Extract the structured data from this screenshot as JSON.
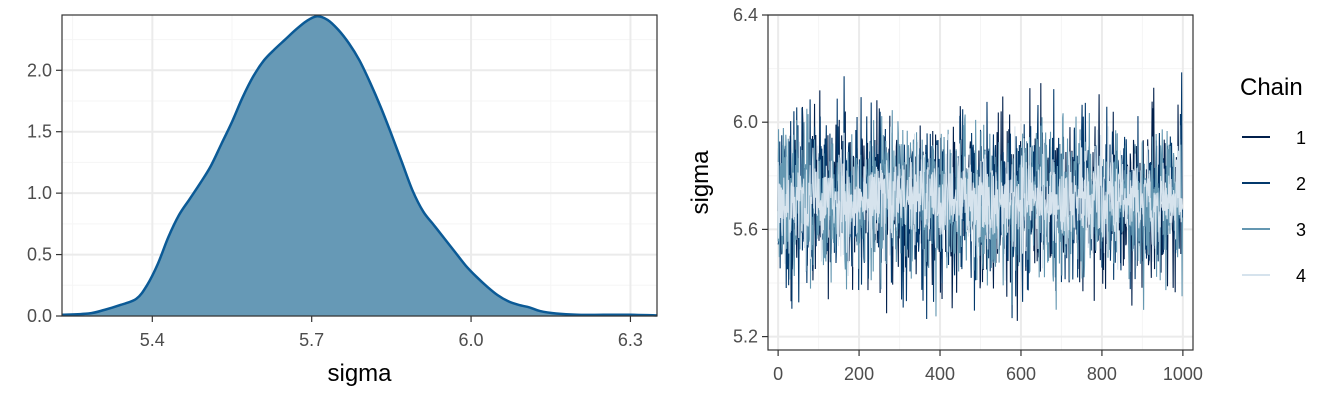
{
  "colors": {
    "density_fill": "#6699b6",
    "density_line": "#0b5a96",
    "grid_major": "#ebebeb",
    "grid_minor": "#f5f5f5",
    "panel_border": "#333333",
    "tick_text": "#4d4d4d"
  },
  "chart_data": [
    {
      "type": "area",
      "xlabel": "sigma",
      "ylabel": "",
      "xlim": [
        5.23,
        6.35
      ],
      "ylim": [
        0,
        2.45
      ],
      "x_ticks": [
        5.4,
        5.7,
        6.0,
        6.3
      ],
      "x_tick_labels": [
        "5.4",
        "5.7",
        "6.0",
        "6.3"
      ],
      "y_ticks": [
        0.0,
        0.5,
        1.0,
        1.5,
        2.0
      ],
      "y_tick_labels": [
        "0.0",
        "0.5",
        "1.0",
        "1.5",
        "2.0"
      ],
      "grid": true,
      "series": [
        {
          "x": [
            5.23,
            5.28,
            5.31,
            5.34,
            5.37,
            5.39,
            5.41,
            5.43,
            5.45,
            5.47,
            5.49,
            5.51,
            5.53,
            5.55,
            5.57,
            5.59,
            5.61,
            5.63,
            5.65,
            5.67,
            5.69,
            5.71,
            5.73,
            5.75,
            5.77,
            5.79,
            5.81,
            5.83,
            5.85,
            5.87,
            5.89,
            5.91,
            5.93,
            5.95,
            5.97,
            5.99,
            6.01,
            6.03,
            6.05,
            6.07,
            6.09,
            6.11,
            6.13,
            6.16,
            6.2,
            6.25,
            6.3,
            6.35
          ],
          "y": [
            0.01,
            0.02,
            0.05,
            0.09,
            0.14,
            0.25,
            0.42,
            0.64,
            0.82,
            0.95,
            1.08,
            1.22,
            1.4,
            1.58,
            1.78,
            1.95,
            2.08,
            2.17,
            2.25,
            2.33,
            2.4,
            2.44,
            2.41,
            2.33,
            2.22,
            2.08,
            1.9,
            1.7,
            1.48,
            1.25,
            1.02,
            0.85,
            0.74,
            0.63,
            0.52,
            0.41,
            0.32,
            0.24,
            0.17,
            0.12,
            0.09,
            0.07,
            0.04,
            0.02,
            0.01,
            0.01,
            0.01,
            0.005
          ]
        }
      ]
    },
    {
      "type": "line",
      "xlabel": "",
      "ylabel": "sigma",
      "xlim": [
        -25,
        1025
      ],
      "ylim": [
        5.15,
        6.4
      ],
      "x_ticks": [
        0,
        200,
        400,
        600,
        800,
        1000
      ],
      "x_tick_labels": [
        "0",
        "200",
        "400",
        "600",
        "800",
        "1000"
      ],
      "y_ticks": [
        5.2,
        5.6,
        6.0,
        6.4
      ],
      "y_tick_labels": [
        "5.2",
        "5.6",
        "6.0",
        "6.4"
      ],
      "grid": true,
      "legend": {
        "title": "Chain",
        "placement": "right",
        "entries": [
          "1",
          "2",
          "3",
          "4"
        ]
      },
      "series": [
        {
          "name": "1",
          "color": "#011f4b",
          "iterations": 1000,
          "center": 5.71,
          "spread": 0.15,
          "seed": 11
        },
        {
          "name": "2",
          "color": "#03396c",
          "iterations": 1000,
          "center": 5.71,
          "spread": 0.15,
          "seed": 23
        },
        {
          "name": "3",
          "color": "#6497b1",
          "iterations": 1000,
          "center": 5.71,
          "spread": 0.14,
          "seed": 37
        },
        {
          "name": "4",
          "color": "#d6e3ed",
          "iterations": 1000,
          "center": 5.71,
          "spread": 0.1,
          "seed": 53
        }
      ]
    }
  ]
}
